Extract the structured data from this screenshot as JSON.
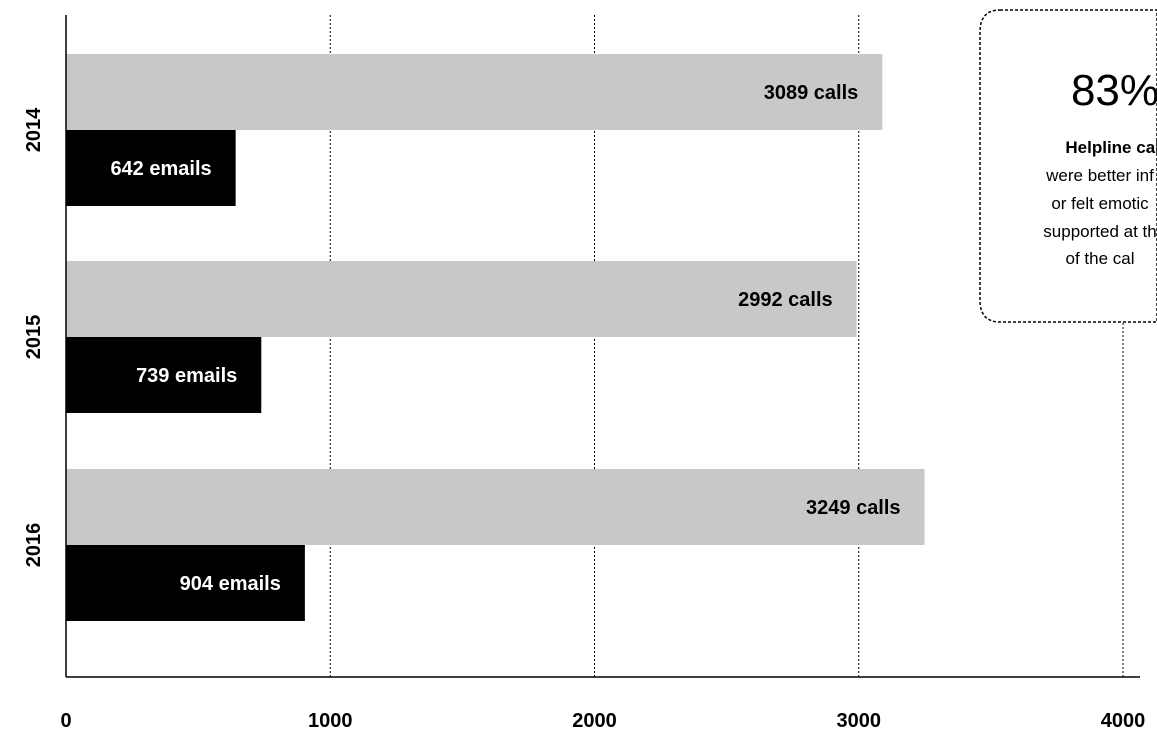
{
  "chart_data": {
    "type": "bar",
    "orientation": "horizontal",
    "categories": [
      "2014",
      "2015",
      "2016"
    ],
    "series": [
      {
        "values": [
          3089,
          2992,
          3249
        ],
        "labels": [
          "3089 calls",
          "2992 calls",
          "3249 calls"
        ]
      },
      {
        "values": [
          642,
          739,
          904
        ],
        "labels": [
          "642 emails",
          "739 emails",
          "904 emails"
        ]
      }
    ],
    "xlim": [
      0,
      4000
    ],
    "xticks": [
      0,
      1000,
      2000,
      3000,
      4000
    ],
    "xtick_labels": [
      "0",
      "1000",
      "2000",
      "3000",
      "4000"
    ],
    "grid": "vertical dotted",
    "colors": {
      "calls": "#c8c8c8",
      "emails": "#000000"
    }
  },
  "callout": {
    "headline": "83%",
    "bold_line": "Helpline call",
    "lines": [
      "were better inf",
      "or felt emotic",
      "supported at th",
      "of the cal"
    ]
  }
}
